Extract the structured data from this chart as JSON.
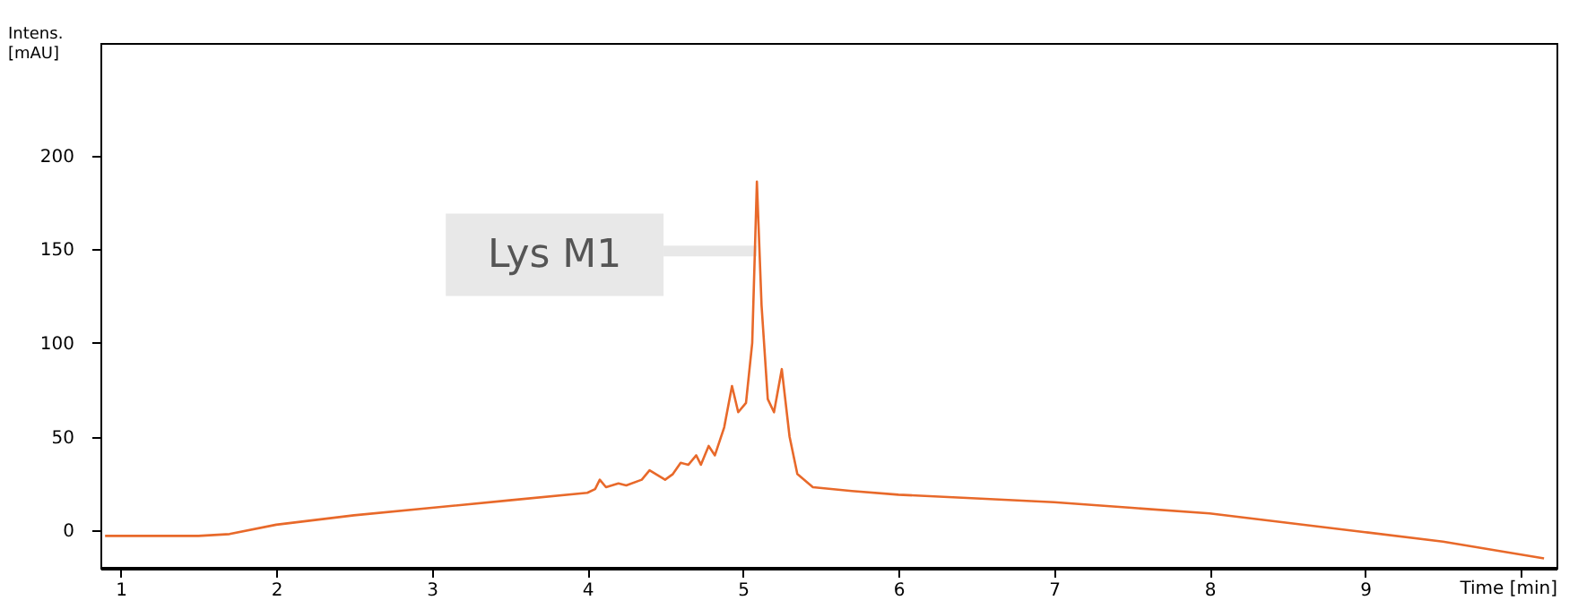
{
  "chart_data": {
    "type": "line",
    "ylabel": "Intens.\n[mAU]",
    "xlabel": "Time [min]",
    "x": [
      0.9,
      1.5,
      1.7,
      2.0,
      2.5,
      3.0,
      3.5,
      4.0,
      4.05,
      4.08,
      4.12,
      4.2,
      4.25,
      4.35,
      4.4,
      4.5,
      4.55,
      4.6,
      4.65,
      4.7,
      4.73,
      4.78,
      4.82,
      4.88,
      4.93,
      4.97,
      5.02,
      5.06,
      5.09,
      5.12,
      5.16,
      5.2,
      5.25,
      5.3,
      5.35,
      5.45,
      5.7,
      6.0,
      6.5,
      7.0,
      7.5,
      8.0,
      8.5,
      9.0,
      9.5,
      10.15
    ],
    "series": [
      {
        "color": "#e8692a",
        "values": [
          -3,
          -3,
          -2,
          3,
          8,
          12,
          16,
          20,
          22,
          27,
          23,
          25,
          24,
          27,
          32,
          27,
          30,
          36,
          35,
          40,
          35,
          45,
          40,
          55,
          77,
          63,
          68,
          100,
          186,
          120,
          70,
          63,
          86,
          50,
          30,
          23,
          21,
          19,
          17,
          15,
          12,
          9,
          4,
          -1,
          -6,
          -15
        ]
      }
    ],
    "xlim": [
      0.87,
      10.23
    ],
    "ylim": [
      -20,
      260
    ],
    "xticks": [
      1,
      2,
      3,
      4,
      5,
      6,
      7,
      8,
      9,
      {
        "value": 10,
        "label": null
      }
    ],
    "yticks": [
      0,
      50,
      100,
      150,
      200
    ],
    "annotations": [
      {
        "text": "Lys M1",
        "x": 5.09,
        "y": 149
      }
    ],
    "grid": false,
    "marker": "none",
    "line_style": "solid"
  }
}
